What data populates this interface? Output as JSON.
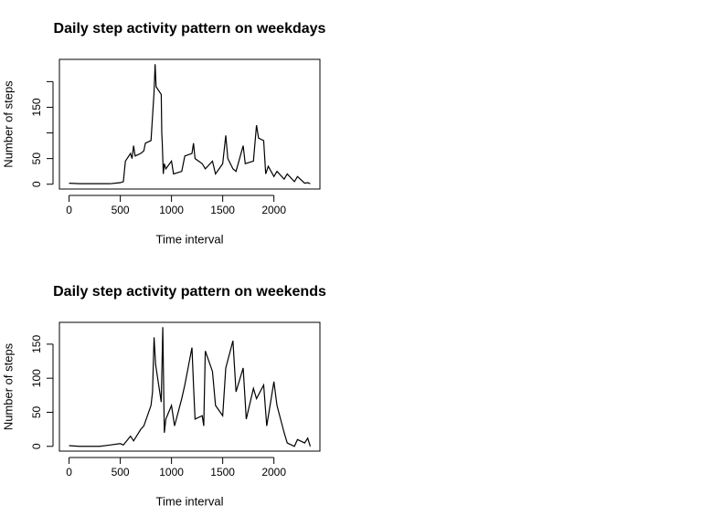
{
  "chart_data": [
    {
      "type": "line",
      "title": "Daily step activity pattern on weekdays",
      "x_label": "Time interval",
      "y_label": "Number of steps",
      "x": [
        0,
        100,
        200,
        300,
        400,
        500,
        530,
        550,
        600,
        615,
        630,
        645,
        700,
        730,
        745,
        800,
        830,
        840,
        850,
        900,
        905,
        910,
        920,
        930,
        945,
        1000,
        1020,
        1100,
        1130,
        1200,
        1215,
        1230,
        1300,
        1330,
        1400,
        1430,
        1500,
        1530,
        1550,
        1600,
        1630,
        1700,
        1720,
        1800,
        1830,
        1850,
        1900,
        1920,
        1945,
        2000,
        2030,
        2100,
        2130,
        2200,
        2230,
        2300,
        2330,
        2355
      ],
      "series": [
        {
          "name": "weekday",
          "color": "#000000",
          "values": [
            2,
            1,
            1,
            1,
            1,
            3,
            5,
            45,
            60,
            50,
            75,
            55,
            60,
            65,
            80,
            85,
            180,
            234,
            190,
            175,
            100,
            80,
            20,
            40,
            30,
            45,
            20,
            25,
            55,
            60,
            80,
            50,
            40,
            30,
            45,
            20,
            40,
            95,
            50,
            30,
            25,
            75,
            40,
            45,
            115,
            90,
            85,
            20,
            35,
            15,
            25,
            10,
            20,
            5,
            15,
            2,
            3,
            1
          ]
        }
      ],
      "xlim": [
        -94.2,
        2449.2
      ],
      "ylim": [
        -9.4,
        243.4
      ],
      "xticks": [
        0,
        500,
        1000,
        1500,
        2000
      ],
      "yticks": [
        0,
        50,
        {
          "value": 100,
          "label": null
        },
        150,
        {
          "value": 200,
          "label": null
        }
      ]
    },
    {
      "type": "line",
      "title": "Daily step activity pattern on weekends",
      "x_label": "Time interval",
      "y_label": "Number of steps",
      "x": [
        0,
        100,
        200,
        300,
        400,
        500,
        530,
        600,
        630,
        700,
        730,
        800,
        815,
        830,
        845,
        900,
        915,
        930,
        945,
        1000,
        1030,
        1100,
        1130,
        1200,
        1215,
        1230,
        1300,
        1315,
        1330,
        1400,
        1430,
        1500,
        1530,
        1600,
        1630,
        1700,
        1730,
        1800,
        1830,
        1900,
        1930,
        2000,
        2030,
        2100,
        2130,
        2200,
        2230,
        2300,
        2330,
        2355
      ],
      "series": [
        {
          "name": "weekend",
          "color": "#000000",
          "values": [
            1,
            0,
            0,
            0,
            2,
            4,
            2,
            15,
            8,
            25,
            30,
            60,
            80,
            160,
            120,
            65,
            175,
            20,
            40,
            60,
            30,
            70,
            90,
            145,
            90,
            40,
            45,
            30,
            140,
            110,
            60,
            45,
            115,
            155,
            80,
            115,
            40,
            85,
            70,
            90,
            30,
            95,
            60,
            20,
            5,
            0,
            10,
            5,
            12,
            0
          ]
        }
      ],
      "xlim": [
        -94.2,
        2449.2
      ],
      "ylim": [
        -7,
        182
      ],
      "xticks": [
        0,
        500,
        1000,
        1500,
        2000
      ],
      "yticks": [
        0,
        50,
        100,
        150
      ]
    }
  ]
}
